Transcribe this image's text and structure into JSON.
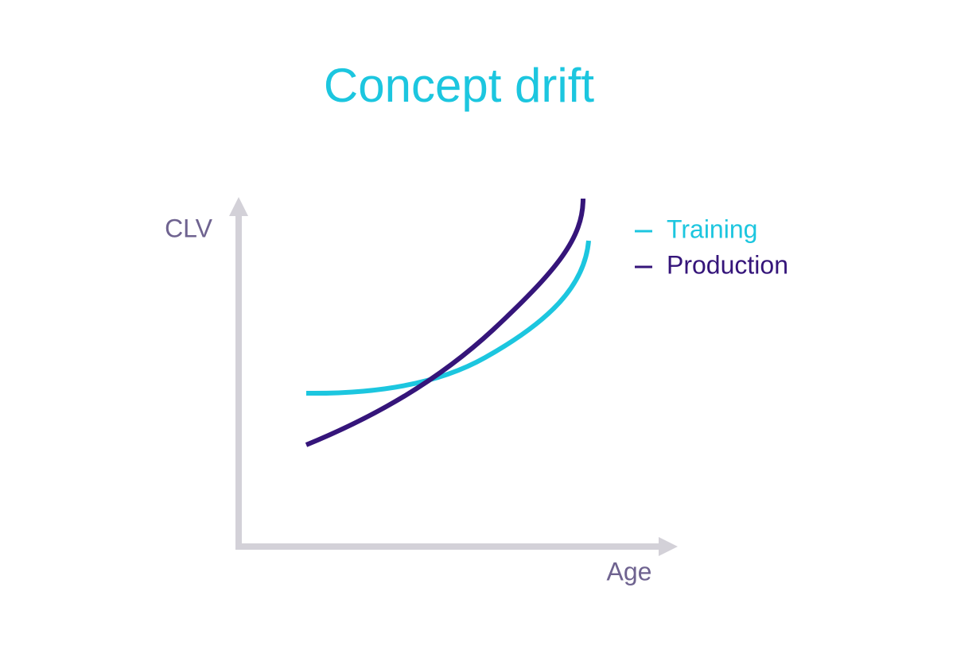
{
  "title": "Concept drift",
  "y_axis_label": "CLV",
  "x_axis_label": "Age",
  "legend": [
    "Training",
    "Production"
  ]
}
